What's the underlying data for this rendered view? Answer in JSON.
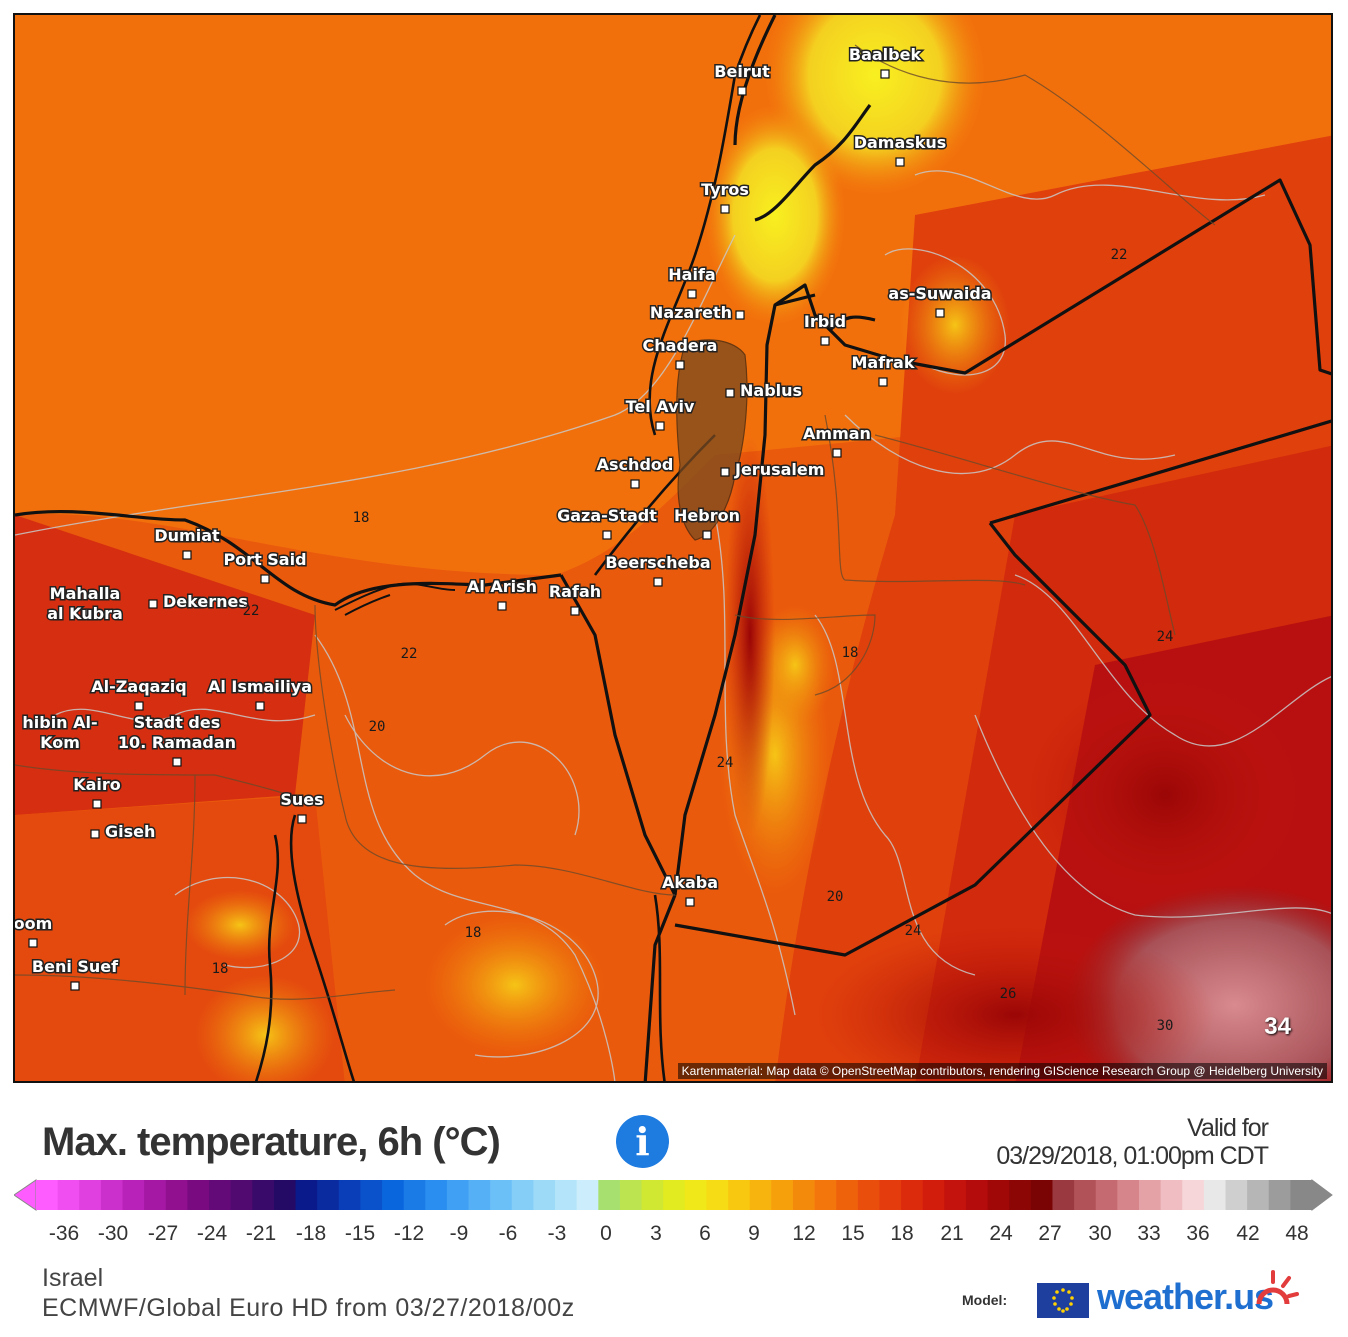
{
  "map": {
    "attribution": "Kartenmaterial: Map data © OpenStreetMap contributors, rendering GIScience Research Group @ Heidelberg University",
    "corner_value": "34",
    "cities": [
      {
        "name": "Baalbek"
      },
      {
        "name": "Beirut"
      },
      {
        "name": "Damaskus"
      },
      {
        "name": "Tyros"
      },
      {
        "name": "Haifa"
      },
      {
        "name": "Nazareth"
      },
      {
        "name": "as-Suwaida"
      },
      {
        "name": "Irbid"
      },
      {
        "name": "Chadera"
      },
      {
        "name": "Mafrak"
      },
      {
        "name": "Nablus"
      },
      {
        "name": "Tel Aviv"
      },
      {
        "name": "Amman"
      },
      {
        "name": "Aschdod"
      },
      {
        "name": "Jerusalem"
      },
      {
        "name": "Gaza-Stadt"
      },
      {
        "name": "Hebron"
      },
      {
        "name": "Dumiat"
      },
      {
        "name": "Port Said"
      },
      {
        "name": "Beerscheba"
      },
      {
        "name": "Mahalla"
      },
      {
        "name": "al Kubra"
      },
      {
        "name": "Dekernes"
      },
      {
        "name": "Al Arish"
      },
      {
        "name": "Rafah"
      },
      {
        "name": "Al-Zaqaziq"
      },
      {
        "name": "Al Ismailiya"
      },
      {
        "name": "hibin Al-"
      },
      {
        "name": "Kom"
      },
      {
        "name": "Stadt des"
      },
      {
        "name": "10. Ramadan"
      },
      {
        "name": "Kairo"
      },
      {
        "name": "Giseh"
      },
      {
        "name": "Sues"
      },
      {
        "name": "Akaba"
      },
      {
        "name": "oom"
      },
      {
        "name": "Beni Suef"
      }
    ],
    "contour_labels": [
      "22",
      "18",
      "22",
      "22",
      "24",
      "18",
      "20",
      "24",
      "20",
      "18",
      "18",
      "24",
      "26",
      "30"
    ]
  },
  "title": "Max. temperature, 6h (°C)",
  "valid_label": "Valid for",
  "valid_date": "03/29/2018, 01:00pm CDT",
  "scale": {
    "tick_labels": [
      "-36",
      "-30",
      "-27",
      "-24",
      "-21",
      "-18",
      "-15",
      "-12",
      "-9",
      "-6",
      "-3",
      "0",
      "3",
      "6",
      "9",
      "12",
      "15",
      "18",
      "21",
      "24",
      "27",
      "30",
      "33",
      "36",
      "42",
      "48"
    ],
    "colors": [
      "#ff5cff",
      "#f04ef0",
      "#e040e0",
      "#cc30cc",
      "#b822b8",
      "#a418a4",
      "#901090",
      "#7a0a80",
      "#640a78",
      "#500a70",
      "#3a0a6a",
      "#240a64",
      "#0a1a8a",
      "#0a2aa0",
      "#0a3eb8",
      "#0a52cc",
      "#0a66dc",
      "#1a7ae6",
      "#2a8ef0",
      "#3fa0f4",
      "#55b0f6",
      "#6cc0f8",
      "#84cef8",
      "#9cdaf8",
      "#b4e4fa",
      "#cceefc",
      "#a8e070",
      "#bce450",
      "#d0e832",
      "#e2ea20",
      "#f0e818",
      "#f6dc14",
      "#f8c810",
      "#f8b40e",
      "#f6a00c",
      "#f48a0c",
      "#f2760c",
      "#ee620c",
      "#ea4e0c",
      "#e43c0c",
      "#dc2a0c",
      "#d21c0c",
      "#c4120c",
      "#b40c0c",
      "#a00808",
      "#8c0606",
      "#7a0404",
      "#9a3a40",
      "#b05258",
      "#c46a70",
      "#d6868a",
      "#e4a2a6",
      "#f0bec2",
      "#f6d6d8",
      "#e8e8e8",
      "#cfcfcf",
      "#b6b6b6",
      "#9c9c9c",
      "#888888"
    ]
  },
  "region": "Israel",
  "model_run": "ECMWF/Global Euro HD from 03/27/2018/00z",
  "model_label": "Model:",
  "brand": "weather.us",
  "icons": {
    "info": "info-icon",
    "sun": "sun-logo-icon",
    "flag": "eu-flag-icon"
  }
}
